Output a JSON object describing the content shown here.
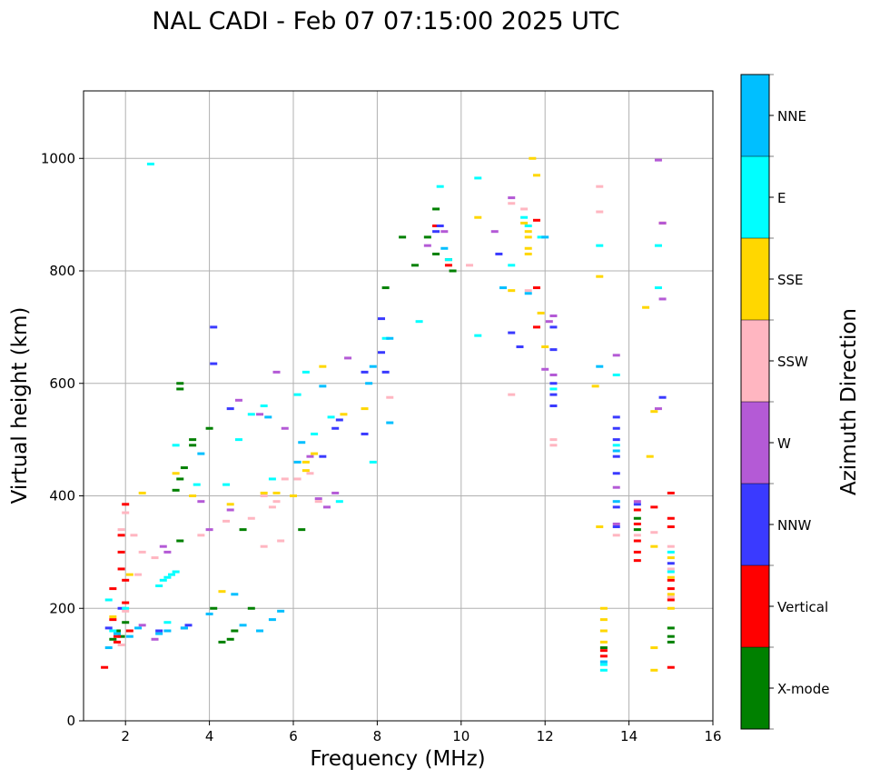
{
  "chart_data": {
    "type": "scatter",
    "title": "NAL CADI - Feb 07 07:15:00 2025 UTC",
    "xlabel": "Frequency (MHz)",
    "ylabel": "Virtual height (km)",
    "xlim": [
      1,
      16
    ],
    "ylim": [
      0,
      1120
    ],
    "xticks": [
      2,
      4,
      6,
      8,
      10,
      12,
      14,
      16
    ],
    "yticks": [
      0,
      200,
      400,
      600,
      800,
      1000
    ],
    "grid": true,
    "colorbar": {
      "label": "Azimuth Direction",
      "categories": [
        {
          "name": "X-mode",
          "color": "#008000"
        },
        {
          "name": "Vertical",
          "color": "#ff0000"
        },
        {
          "name": "NNW",
          "color": "#3a3aff"
        },
        {
          "name": "W",
          "color": "#b45ad6"
        },
        {
          "name": "SSW",
          "color": "#ffb6c1"
        },
        {
          "name": "SSE",
          "color": "#ffd700"
        },
        {
          "name": "E",
          "color": "#00ffff"
        },
        {
          "name": "NNE",
          "color": "#00bfff"
        }
      ]
    },
    "series": [
      {
        "name": "X-mode",
        "points": [
          [
            1.7,
            145
          ],
          [
            1.8,
            160
          ],
          [
            1.9,
            150
          ],
          [
            2.0,
            175
          ],
          [
            3.3,
            590
          ],
          [
            3.3,
            600
          ],
          [
            3.4,
            450
          ],
          [
            3.6,
            490
          ],
          [
            3.6,
            500
          ],
          [
            4.0,
            520
          ],
          [
            4.1,
            200
          ],
          [
            4.3,
            140
          ],
          [
            4.5,
            145
          ],
          [
            4.6,
            160
          ],
          [
            4.8,
            340
          ],
          [
            5.0,
            200
          ],
          [
            6.2,
            340
          ],
          [
            8.2,
            770
          ],
          [
            8.6,
            860
          ],
          [
            8.9,
            810
          ],
          [
            9.2,
            860
          ],
          [
            9.4,
            830
          ],
          [
            9.4,
            910
          ],
          [
            9.7,
            820
          ],
          [
            9.8,
            800
          ],
          [
            3.3,
            320
          ],
          [
            3.2,
            410
          ],
          [
            3.3,
            430
          ],
          [
            14.2,
            340
          ],
          [
            14.2,
            360
          ],
          [
            15.0,
            140
          ],
          [
            15.0,
            165
          ],
          [
            15.0,
            150
          ],
          [
            13.4,
            130
          ]
        ]
      },
      {
        "name": "Vertical",
        "points": [
          [
            1.5,
            95
          ],
          [
            1.7,
            235
          ],
          [
            1.7,
            180
          ],
          [
            1.8,
            150
          ],
          [
            1.9,
            330
          ],
          [
            1.9,
            300
          ],
          [
            2.0,
            385
          ],
          [
            2.0,
            210
          ],
          [
            1.8,
            140
          ],
          [
            2.1,
            160
          ],
          [
            1.9,
            270
          ],
          [
            2.0,
            250
          ],
          [
            9.4,
            880
          ],
          [
            9.7,
            810
          ],
          [
            11.8,
            890
          ],
          [
            11.8,
            770
          ],
          [
            11.8,
            700
          ],
          [
            14.2,
            300
          ],
          [
            14.2,
            320
          ],
          [
            14.2,
            350
          ],
          [
            14.2,
            375
          ],
          [
            14.2,
            285
          ],
          [
            15.0,
            405
          ],
          [
            15.0,
            360
          ],
          [
            15.0,
            345
          ],
          [
            15.0,
            250
          ],
          [
            15.0,
            235
          ],
          [
            15.0,
            215
          ],
          [
            15.0,
            95
          ],
          [
            13.4,
            115
          ],
          [
            13.4,
            125
          ],
          [
            14.8,
            885
          ],
          [
            14.6,
            380
          ]
        ]
      },
      {
        "name": "NNW",
        "points": [
          [
            4.1,
            700
          ],
          [
            4.1,
            635
          ],
          [
            4.5,
            555
          ],
          [
            6.7,
            470
          ],
          [
            7.0,
            520
          ],
          [
            7.1,
            535
          ],
          [
            7.7,
            620
          ],
          [
            7.7,
            510
          ],
          [
            8.1,
            715
          ],
          [
            8.1,
            655
          ],
          [
            8.2,
            620
          ],
          [
            9.4,
            870
          ],
          [
            9.5,
            880
          ],
          [
            10.9,
            830
          ],
          [
            11.2,
            690
          ],
          [
            11.4,
            665
          ],
          [
            12.2,
            700
          ],
          [
            12.2,
            660
          ],
          [
            12.2,
            600
          ],
          [
            12.2,
            580
          ],
          [
            12.2,
            560
          ],
          [
            13.7,
            540
          ],
          [
            13.7,
            520
          ],
          [
            13.7,
            500
          ],
          [
            13.7,
            470
          ],
          [
            13.7,
            440
          ],
          [
            13.7,
            380
          ],
          [
            13.7,
            345
          ],
          [
            14.8,
            575
          ],
          [
            14.2,
            385
          ],
          [
            3.4,
            165
          ],
          [
            3.5,
            170
          ],
          [
            2.8,
            160
          ],
          [
            1.9,
            200
          ],
          [
            1.6,
            165
          ],
          [
            15.0,
            280
          ]
        ]
      },
      {
        "name": "W",
        "points": [
          [
            2.4,
            170
          ],
          [
            2.7,
            145
          ],
          [
            2.9,
            310
          ],
          [
            3.0,
            300
          ],
          [
            3.8,
            390
          ],
          [
            4.0,
            340
          ],
          [
            4.5,
            375
          ],
          [
            4.7,
            570
          ],
          [
            5.2,
            545
          ],
          [
            5.6,
            620
          ],
          [
            5.8,
            520
          ],
          [
            6.4,
            470
          ],
          [
            6.6,
            395
          ],
          [
            6.8,
            380
          ],
          [
            7.0,
            405
          ],
          [
            7.3,
            645
          ],
          [
            9.2,
            845
          ],
          [
            9.6,
            870
          ],
          [
            10.8,
            870
          ],
          [
            11.2,
            930
          ],
          [
            12.0,
            625
          ],
          [
            12.1,
            710
          ],
          [
            12.2,
            720
          ],
          [
            12.2,
            615
          ],
          [
            13.7,
            650
          ],
          [
            13.7,
            415
          ],
          [
            13.7,
            350
          ],
          [
            14.2,
            390
          ],
          [
            14.7,
            555
          ],
          [
            14.8,
            750
          ],
          [
            14.8,
            885
          ],
          [
            14.7,
            997
          ]
        ]
      },
      {
        "name": "SSW",
        "points": [
          [
            1.9,
            340
          ],
          [
            2.0,
            370
          ],
          [
            2.2,
            330
          ],
          [
            2.4,
            300
          ],
          [
            2.7,
            290
          ],
          [
            3.8,
            330
          ],
          [
            4.4,
            355
          ],
          [
            5.0,
            360
          ],
          [
            5.3,
            400
          ],
          [
            5.5,
            380
          ],
          [
            5.6,
            390
          ],
          [
            5.8,
            430
          ],
          [
            5.3,
            310
          ],
          [
            5.7,
            320
          ],
          [
            6.1,
            430
          ],
          [
            6.4,
            440
          ],
          [
            6.6,
            390
          ],
          [
            8.3,
            575
          ],
          [
            10.2,
            810
          ],
          [
            11.2,
            920
          ],
          [
            11.5,
            910
          ],
          [
            11.2,
            580
          ],
          [
            11.6,
            765
          ],
          [
            12.2,
            500
          ],
          [
            12.2,
            490
          ],
          [
            13.3,
            905
          ],
          [
            13.3,
            950
          ],
          [
            13.7,
            330
          ],
          [
            14.2,
            330
          ],
          [
            14.6,
            335
          ],
          [
            15.0,
            310
          ],
          [
            15.0,
            270
          ],
          [
            15.0,
            220
          ],
          [
            2.0,
            195
          ],
          [
            1.9,
            135
          ],
          [
            2.3,
            260
          ]
        ]
      },
      {
        "name": "SSE",
        "points": [
          [
            2.4,
            405
          ],
          [
            3.2,
            440
          ],
          [
            3.6,
            400
          ],
          [
            4.3,
            230
          ],
          [
            4.5,
            385
          ],
          [
            5.3,
            405
          ],
          [
            5.6,
            405
          ],
          [
            6.0,
            400
          ],
          [
            6.3,
            445
          ],
          [
            6.3,
            460
          ],
          [
            6.5,
            475
          ],
          [
            6.7,
            630
          ],
          [
            7.2,
            545
          ],
          [
            7.7,
            555
          ],
          [
            10.4,
            895
          ],
          [
            11.2,
            765
          ],
          [
            11.5,
            885
          ],
          [
            11.6,
            870
          ],
          [
            11.6,
            860
          ],
          [
            11.6,
            840
          ],
          [
            11.6,
            830
          ],
          [
            11.7,
            1000
          ],
          [
            11.8,
            970
          ],
          [
            11.9,
            725
          ],
          [
            12.0,
            665
          ],
          [
            13.2,
            595
          ],
          [
            13.3,
            790
          ],
          [
            13.3,
            345
          ],
          [
            13.4,
            200
          ],
          [
            13.4,
            180
          ],
          [
            13.4,
            160
          ],
          [
            13.4,
            140
          ],
          [
            14.4,
            735
          ],
          [
            14.5,
            470
          ],
          [
            14.6,
            550
          ],
          [
            14.6,
            310
          ],
          [
            14.6,
            130
          ],
          [
            14.6,
            90
          ],
          [
            15.0,
            290
          ],
          [
            15.0,
            255
          ],
          [
            15.0,
            225
          ],
          [
            15.0,
            200
          ],
          [
            2.1,
            260
          ],
          [
            1.7,
            185
          ]
        ]
      },
      {
        "name": "E",
        "points": [
          [
            1.6,
            215
          ],
          [
            1.7,
            160
          ],
          [
            2.0,
            200
          ],
          [
            2.6,
            990
          ],
          [
            2.8,
            240
          ],
          [
            2.9,
            250
          ],
          [
            3.0,
            255
          ],
          [
            3.1,
            260
          ],
          [
            3.2,
            265
          ],
          [
            3.0,
            175
          ],
          [
            3.2,
            490
          ],
          [
            3.7,
            420
          ],
          [
            4.4,
            420
          ],
          [
            4.7,
            500
          ],
          [
            5.0,
            545
          ],
          [
            5.3,
            560
          ],
          [
            5.5,
            430
          ],
          [
            6.1,
            580
          ],
          [
            6.3,
            620
          ],
          [
            6.5,
            510
          ],
          [
            6.9,
            540
          ],
          [
            7.1,
            390
          ],
          [
            7.9,
            460
          ],
          [
            8.2,
            680
          ],
          [
            9.0,
            710
          ],
          [
            9.5,
            950
          ],
          [
            9.7,
            820
          ],
          [
            10.4,
            965
          ],
          [
            10.4,
            685
          ],
          [
            11.2,
            810
          ],
          [
            11.5,
            895
          ],
          [
            11.6,
            880
          ],
          [
            11.9,
            860
          ],
          [
            12.2,
            590
          ],
          [
            13.3,
            845
          ],
          [
            13.4,
            100
          ],
          [
            13.4,
            90
          ],
          [
            13.7,
            615
          ],
          [
            13.7,
            490
          ],
          [
            14.7,
            770
          ],
          [
            14.7,
            845
          ],
          [
            15.0,
            300
          ],
          [
            15.0,
            265
          ]
        ]
      },
      {
        "name": "NNE",
        "points": [
          [
            1.6,
            130
          ],
          [
            1.8,
            155
          ],
          [
            2.1,
            150
          ],
          [
            2.3,
            165
          ],
          [
            2.8,
            155
          ],
          [
            3.0,
            160
          ],
          [
            3.4,
            165
          ],
          [
            4.0,
            190
          ],
          [
            4.6,
            225
          ],
          [
            4.8,
            170
          ],
          [
            5.2,
            160
          ],
          [
            5.5,
            180
          ],
          [
            5.7,
            195
          ],
          [
            6.2,
            495
          ],
          [
            6.7,
            595
          ],
          [
            7.8,
            600
          ],
          [
            7.9,
            630
          ],
          [
            8.3,
            680
          ],
          [
            8.3,
            530
          ],
          [
            9.6,
            840
          ],
          [
            11.0,
            770
          ],
          [
            11.6,
            760
          ],
          [
            12.0,
            860
          ],
          [
            13.3,
            630
          ],
          [
            13.7,
            480
          ],
          [
            13.7,
            390
          ],
          [
            13.4,
            105
          ],
          [
            3.8,
            475
          ],
          [
            5.4,
            540
          ],
          [
            6.1,
            460
          ]
        ]
      }
    ]
  }
}
